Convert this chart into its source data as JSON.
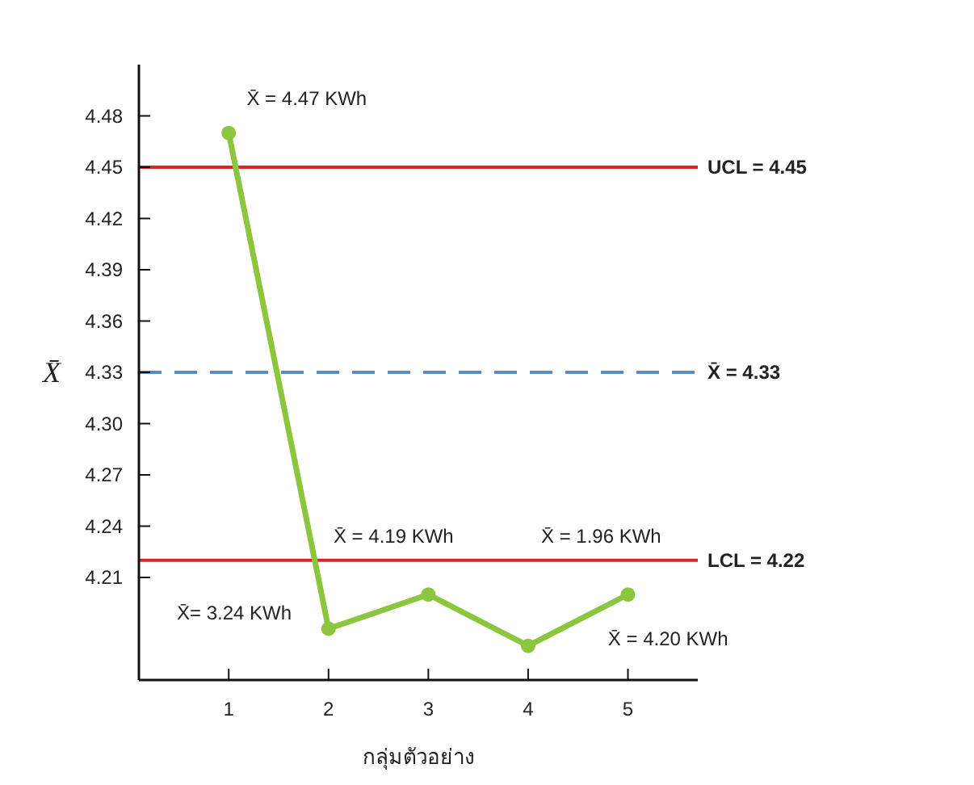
{
  "chart_data": {
    "type": "line",
    "xlabel": "กลุ่มตัวอย่าง",
    "ylabel": "X̄",
    "x": [
      1,
      2,
      3,
      4,
      5
    ],
    "series": [
      {
        "color": "#8cc63f",
        "values": [
          4.47,
          4.18,
          4.2,
          4.17,
          4.2
        ]
      }
    ],
    "marker": "circle",
    "line_style": "solid",
    "grid": false,
    "xlim": [
      0.1,
      5.7
    ],
    "ylim": [
      4.15,
      4.51
    ],
    "xticks": [
      1,
      2,
      3,
      4,
      5
    ],
    "yticks": [
      4.21,
      4.24,
      4.27,
      {
        "value": 4.3,
        "label": "4.30"
      },
      4.33,
      4.36,
      4.39,
      4.42,
      4.45,
      4.48
    ],
    "ref_lines": [
      {
        "axis": "y",
        "value": 4.45,
        "label": "UCL =  4.45",
        "color": "#d7262b",
        "line_style": "solid"
      },
      {
        "axis": "y",
        "value": 4.33,
        "label": "X̄ =  4.33",
        "color": "#5b8db8",
        "line_style": "dashed"
      },
      {
        "axis": "y",
        "value": 4.22,
        "label": "LCL = 4.22",
        "color": "#d7262b",
        "line_style": "solid"
      }
    ],
    "annotations": [
      "X̄  = 4.47 KWh",
      "X̄ = 4.19 KWh",
      "X̄  = 1.96 KWh",
      "X̄= 3.24 KWh",
      "X̄  = 4.20 KWh"
    ]
  }
}
